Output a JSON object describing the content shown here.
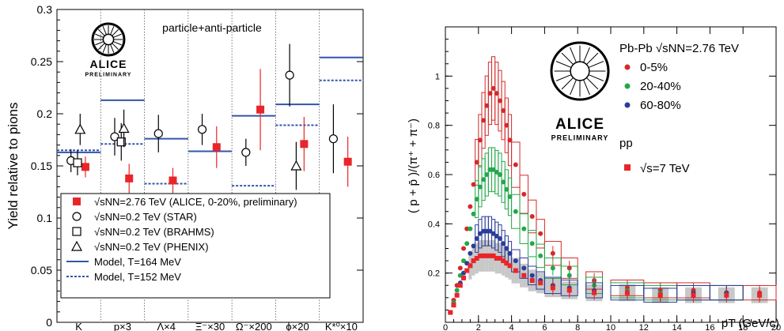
{
  "chart_data": [
    {
      "type": "scatter",
      "ylabel": "Yield relative to pions",
      "ylim": [
        0,
        0.3
      ],
      "yticks": [
        "0",
        "0.05",
        "0.1",
        "0.15",
        "0.2",
        "0.25",
        "0.3"
      ],
      "categories": [
        "K",
        "p×3",
        "Λ×4",
        "Ξ⁻×30",
        "Ω⁻×200",
        "ϕ×20",
        "K*⁰×10"
      ],
      "annotation": "particle+anti-particle",
      "logo": {
        "name": "ALICE",
        "sub": "PRELIMINARY"
      },
      "series": [
        {
          "name": "√sNN=2.76 TeV (ALICE, 0-20%, preliminary)",
          "marker": "filled-square",
          "color": "#e8262a",
          "points": [
            {
              "cat": 0,
              "offset": 0.25,
              "y": 0.149,
              "err": 0.01
            },
            {
              "cat": 1,
              "offset": 0.25,
              "y": 0.138,
              "err": 0.014
            },
            {
              "cat": 2,
              "offset": 0.25,
              "y": 0.136,
              "err": 0.012
            },
            {
              "cat": 3,
              "offset": 0.25,
              "y": 0.168,
              "err": 0.02
            },
            {
              "cat": 4,
              "offset": 0.25,
              "y": 0.204,
              "err": 0.039
            },
            {
              "cat": 5,
              "offset": 0.25,
              "y": 0.171,
              "err": 0.026
            },
            {
              "cat": 6,
              "offset": 0.25,
              "y": 0.154,
              "err": 0.024
            }
          ]
        },
        {
          "name": "√sNN=0.2 TeV (STAR)",
          "marker": "open-circle",
          "color": "#000000",
          "points": [
            {
              "cat": 0,
              "offset": -0.3,
              "y": 0.155,
              "err": 0.011
            },
            {
              "cat": 1,
              "offset": -0.3,
              "y": 0.178,
              "err": 0.018
            },
            {
              "cat": 2,
              "offset": -0.3,
              "y": 0.181,
              "err": 0.018
            },
            {
              "cat": 3,
              "offset": -0.3,
              "y": 0.185,
              "err": 0.015
            },
            {
              "cat": 4,
              "offset": -0.3,
              "y": 0.163,
              "err": 0.013
            },
            {
              "cat": 5,
              "offset": -0.3,
              "y": 0.237,
              "err": 0.03
            },
            {
              "cat": 6,
              "offset": -0.3,
              "y": 0.176,
              "err": 0.033
            }
          ]
        },
        {
          "name": "√sNN=0.2 TeV (BRAHMS)",
          "marker": "open-square",
          "color": "#000000",
          "points": [
            {
              "cat": 0,
              "offset": -0.05,
              "y": 0.153,
              "err": 0.012
            },
            {
              "cat": 1,
              "offset": -0.05,
              "y": 0.173,
              "err": 0.018
            }
          ]
        },
        {
          "name": "√sNN=0.2 TeV (PHENIX)",
          "marker": "open-triangle",
          "color": "#000000",
          "points": [
            {
              "cat": 0,
              "offset": 0.05,
              "y": 0.185,
              "err": 0.015
            },
            {
              "cat": 1,
              "offset": 0.05,
              "y": 0.186,
              "err": 0.018
            },
            {
              "cat": 5,
              "offset": -0.05,
              "y": 0.15,
              "err": 0.023
            }
          ]
        },
        {
          "name": "Model, T=164 MeV",
          "marker": "solid-line",
          "color": "#3355aa",
          "values": [
            0.163,
            0.213,
            0.176,
            0.164,
            0.198,
            0.209,
            0.254
          ]
        },
        {
          "name": "Model, T=152 MeV",
          "marker": "dashed-line",
          "color": "#3355aa",
          "values": [
            0.165,
            0.171,
            0.133,
            0.122,
            0.131,
            0.189,
            0.232
          ]
        }
      ]
    },
    {
      "type": "scatter",
      "ylabel": "( p + p̄ )/(π⁺ + π⁻)",
      "xlabel": "pT (GeV/c)",
      "xlim": [
        0,
        20
      ],
      "ylim": [
        0,
        1.2
      ],
      "xticks": [
        "0",
        "2",
        "4",
        "6",
        "8",
        "10",
        "12",
        "14",
        "16",
        "18",
        "20"
      ],
      "yticks": [
        "0.2",
        "0.4",
        "0.6",
        "0.8",
        "1"
      ],
      "logo": {
        "name": "ALICE",
        "sub": "PRELIMINARY"
      },
      "legend_header": "Pb-Pb √sNN=2.76 TeV",
      "pp_header": "pp",
      "series": [
        {
          "name": "0-5%",
          "color": "#d42a2a",
          "x": [
            0.3,
            0.5,
            0.7,
            0.9,
            1.1,
            1.3,
            1.5,
            1.7,
            1.9,
            2.1,
            2.3,
            2.5,
            2.7,
            2.9,
            3.1,
            3.3,
            3.5,
            3.7,
            3.9,
            4.25,
            4.75,
            5.25,
            5.75,
            6.5,
            7.5,
            9,
            11,
            13,
            15,
            17,
            19
          ],
          "y": [
            0.04,
            0.09,
            0.15,
            0.22,
            0.3,
            0.38,
            0.47,
            0.56,
            0.65,
            0.74,
            0.82,
            0.88,
            0.93,
            0.95,
            0.93,
            0.9,
            0.86,
            0.8,
            0.74,
            0.64,
            0.52,
            0.43,
            0.36,
            0.28,
            0.22,
            0.17,
            0.14,
            0.13,
            0.13,
            0.12,
            0.12
          ]
        },
        {
          "name": "20-40%",
          "color": "#22a84a",
          "x": [
            0.3,
            0.5,
            0.7,
            0.9,
            1.1,
            1.3,
            1.5,
            1.7,
            1.9,
            2.1,
            2.3,
            2.5,
            2.7,
            2.9,
            3.1,
            3.3,
            3.5,
            3.7,
            3.9,
            4.25,
            4.75,
            5.25,
            5.75,
            6.5,
            7.5,
            9,
            11,
            13,
            15,
            17
          ],
          "y": [
            0.04,
            0.08,
            0.13,
            0.19,
            0.25,
            0.32,
            0.38,
            0.44,
            0.5,
            0.55,
            0.58,
            0.6,
            0.62,
            0.62,
            0.61,
            0.6,
            0.57,
            0.54,
            0.51,
            0.45,
            0.38,
            0.32,
            0.27,
            0.22,
            0.19,
            0.15,
            0.13,
            0.12,
            0.12,
            0.12
          ]
        },
        {
          "name": "60-80%",
          "color": "#2a3d9a",
          "x": [
            0.3,
            0.5,
            0.7,
            0.9,
            1.1,
            1.3,
            1.5,
            1.7,
            1.9,
            2.1,
            2.3,
            2.5,
            2.7,
            2.9,
            3.1,
            3.3,
            3.5,
            3.7,
            3.9,
            4.25,
            4.75,
            5.25,
            5.75,
            6.5,
            7.5,
            9,
            11,
            13,
            15,
            17
          ],
          "y": [
            0.04,
            0.07,
            0.11,
            0.16,
            0.2,
            0.24,
            0.28,
            0.31,
            0.34,
            0.36,
            0.37,
            0.37,
            0.37,
            0.36,
            0.35,
            0.34,
            0.32,
            0.3,
            0.28,
            0.25,
            0.22,
            0.19,
            0.17,
            0.15,
            0.14,
            0.13,
            0.12,
            0.11,
            0.12,
            0.12
          ]
        },
        {
          "name": "√s=7 TeV",
          "color": "#e8262a",
          "x": [
            0.3,
            0.5,
            0.7,
            0.9,
            1.1,
            1.3,
            1.5,
            1.7,
            1.9,
            2.1,
            2.3,
            2.5,
            2.7,
            2.9,
            3.1,
            3.3,
            3.5,
            3.7,
            3.9,
            4.25,
            4.75,
            5.25,
            5.75,
            6.5,
            7.5,
            9,
            11,
            13,
            15,
            17,
            19
          ],
          "y": [
            0.04,
            0.07,
            0.11,
            0.15,
            0.18,
            0.21,
            0.23,
            0.25,
            0.26,
            0.27,
            0.27,
            0.27,
            0.27,
            0.27,
            0.26,
            0.26,
            0.25,
            0.24,
            0.23,
            0.21,
            0.19,
            0.17,
            0.16,
            0.14,
            0.13,
            0.12,
            0.12,
            0.11,
            0.11,
            0.11,
            0.11
          ]
        }
      ]
    }
  ]
}
